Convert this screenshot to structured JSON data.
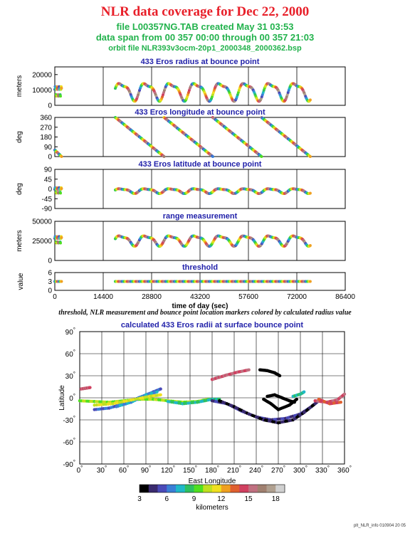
{
  "header": {
    "title": "NLR data coverage for Dec 22, 2000",
    "file_line": "file L00357NG.TAB created May 31 03:53",
    "span_line": "data span from 00 357 00:00 through 00 357 21:03",
    "orbit_line": "orbit file NLR393v3ocm-20p1_2000348_2000362.bsp"
  },
  "caption": "threshold, NLR measurement and bounce point location markers colored by calculated radius value",
  "footer": "plt_NLR_info 010904 20 05",
  "chart_data": [
    {
      "type": "scatter",
      "title": "433 Eros radius at bounce point",
      "xlabel": "",
      "ylabel": "meters",
      "xlim": [
        0,
        86400
      ],
      "ylim": [
        0,
        25000
      ],
      "yticks": [
        "20000",
        "10000",
        "0"
      ],
      "ytick_values": [
        20000,
        10000,
        0
      ],
      "xtick_values": [
        0,
        14400,
        28800,
        43200,
        57600,
        72000,
        86400
      ],
      "segments": [
        {
          "x0": 0,
          "x1": 2000,
          "y_mean": 9500,
          "amp": 3000,
          "period": 600
        },
        {
          "x0": 18000,
          "x1": 76000,
          "y_mean": 9500,
          "amp": 5200,
          "period": 7400
        }
      ]
    },
    {
      "type": "scatter",
      "title": "433 Eros longitude at bounce point",
      "xlabel": "",
      "ylabel": "deg",
      "xlim": [
        0,
        86400
      ],
      "ylim": [
        0,
        360
      ],
      "yticks": [
        "360",
        "270",
        "180",
        "90",
        "0"
      ],
      "ytick_values": [
        360,
        270,
        180,
        90,
        0
      ],
      "xtick_values": [
        0,
        14400,
        28800,
        43200,
        57600,
        72000,
        86400
      ],
      "segments": [
        {
          "x0": 0,
          "x1": 2000,
          "y_start": 60,
          "y_end": 0
        },
        {
          "x0": 18000,
          "x1": 32500,
          "y_start": 360,
          "y_end": 0
        },
        {
          "x0": 32500,
          "x1": 47000,
          "y_start": 360,
          "y_end": 0
        },
        {
          "x0": 47000,
          "x1": 61500,
          "y_start": 360,
          "y_end": 0
        },
        {
          "x0": 61500,
          "x1": 76000,
          "y_start": 360,
          "y_end": 0
        }
      ]
    },
    {
      "type": "scatter",
      "title": "433 Eros latitude at bounce point",
      "xlabel": "",
      "ylabel": "deg",
      "xlim": [
        0,
        86400
      ],
      "ylim": [
        -90,
        90
      ],
      "yticks": [
        "90",
        "45",
        "0",
        "-45",
        "-90"
      ],
      "ytick_values": [
        90,
        45,
        0,
        -45,
        -90
      ],
      "xtick_values": [
        0,
        14400,
        28800,
        43200,
        57600,
        72000,
        86400
      ],
      "segments": [
        {
          "x0": 0,
          "x1": 2000,
          "y_mean": -5,
          "amp": 12,
          "period": 600
        },
        {
          "x0": 18000,
          "x1": 76000,
          "y_mean": -8,
          "amp": 10,
          "period": 7400
        }
      ]
    },
    {
      "type": "scatter",
      "title": "range measurement",
      "xlabel": "",
      "ylabel": "meters",
      "xlim": [
        0,
        86400
      ],
      "ylim": [
        0,
        50000
      ],
      "yticks": [
        "50000",
        "25000",
        "0"
      ],
      "ytick_values": [
        50000,
        25000,
        0
      ],
      "xtick_values": [
        0,
        14400,
        28800,
        43200,
        57600,
        72000,
        86400
      ],
      "segments": [
        {
          "x0": 0,
          "x1": 2000,
          "y_mean": 27000,
          "amp": 4000,
          "period": 600
        },
        {
          "x0": 18000,
          "x1": 76000,
          "y_mean": 26000,
          "amp": 6000,
          "period": 7400
        }
      ]
    },
    {
      "type": "scatter",
      "title": "threshold",
      "xlabel": "time of day (sec)",
      "ylabel": "value",
      "xlim": [
        0,
        86400
      ],
      "ylim": [
        0,
        6
      ],
      "yticks": [
        "6",
        "3",
        "0"
      ],
      "ytick_values": [
        6,
        3,
        0
      ],
      "xticks": [
        "0",
        "14400",
        "28800",
        "43200",
        "57600",
        "72000",
        "86400"
      ],
      "xtick_values": [
        0,
        14400,
        28800,
        43200,
        57600,
        72000,
        86400
      ],
      "segments": [
        {
          "x0": 0,
          "x1": 2000,
          "y": 3
        },
        {
          "x0": 18000,
          "x1": 76000,
          "y": 3
        }
      ]
    },
    {
      "type": "scatter",
      "title": "calculated 433 Eros radii at surface bounce point",
      "xlabel": "East Longitude",
      "ylabel": "Latitude",
      "xlim": [
        0,
        360
      ],
      "ylim": [
        -90,
        90
      ],
      "xticks": [
        "0",
        "30",
        "60",
        "90",
        "120",
        "150",
        "180",
        "210",
        "240",
        "270",
        "300",
        "330",
        "360"
      ],
      "yticks": [
        "90",
        "60",
        "30",
        "0",
        "-30",
        "-60",
        "-90"
      ],
      "degree_symbol": "°",
      "colorbar": {
        "label": "kilometers",
        "ticks": [
          "3",
          "6",
          "9",
          "12",
          "15",
          "18"
        ],
        "range": [
          3,
          19
        ],
        "colors": [
          "#000000",
          "#3a2a6e",
          "#4a4ab8",
          "#3a7fd6",
          "#20b8c8",
          "#2ec060",
          "#50e020",
          "#c0e020",
          "#f0e020",
          "#f0a020",
          "#e06030",
          "#d04060",
          "#c07080",
          "#a08070",
          "#b0a090",
          "#d0d0d0"
        ]
      },
      "tracks": [
        {
          "points": [
            [
              2,
              12
            ],
            [
              8,
              13
            ],
            [
              14,
              14
            ]
          ],
          "value": 15
        },
        {
          "points": [
            [
              0,
              -4
            ],
            [
              20,
              -5
            ],
            [
              40,
              -6
            ],
            [
              60,
              -4
            ],
            [
              80,
              -2
            ],
            [
              100,
              -2
            ],
            [
              120,
              -4
            ],
            [
              140,
              -6
            ],
            [
              160,
              -5
            ],
            [
              175,
              -2
            ]
          ],
          "value": 10
        },
        {
          "points": [
            [
              20,
              -16
            ],
            [
              40,
              -14
            ],
            [
              60,
              -8
            ],
            [
              80,
              0
            ],
            [
              100,
              8
            ],
            [
              110,
              12
            ]
          ],
          "value": 6
        },
        {
          "points": [
            [
              50,
              -12
            ],
            [
              70,
              -6
            ],
            [
              90,
              4
            ],
            [
              105,
              8
            ]
          ],
          "value": 7
        },
        {
          "points": [
            [
              20,
              -10
            ],
            [
              45,
              -8
            ],
            [
              70,
              -3
            ],
            [
              95,
              2
            ],
            [
              110,
              4
            ]
          ],
          "value": 11
        },
        {
          "points": [
            [
              120,
              -5
            ],
            [
              140,
              -8
            ],
            [
              160,
              -6
            ],
            [
              180,
              -2
            ],
            [
              190,
              -2
            ]
          ],
          "value": 8
        },
        {
          "points": [
            [
              180,
              25
            ],
            [
              190,
              28
            ],
            [
              200,
              31
            ],
            [
              215,
              35
            ],
            [
              230,
              38
            ]
          ],
          "value": 15
        },
        {
          "points": [
            [
              245,
              38
            ],
            [
              255,
              37
            ],
            [
              265,
              34
            ],
            [
              272,
              30
            ]
          ],
          "value": 3
        },
        {
          "points": [
            [
              180,
              -4
            ],
            [
              200,
              -8
            ],
            [
              220,
              -18
            ],
            [
              240,
              -26
            ],
            [
              260,
              -30
            ],
            [
              280,
              -28
            ],
            [
              300,
              -22
            ],
            [
              315,
              -12
            ],
            [
              325,
              -4
            ]
          ],
          "value": 5
        },
        {
          "points": [
            [
              190,
              -4
            ],
            [
              210,
              -12
            ],
            [
              230,
              -22
            ],
            [
              250,
              -30
            ],
            [
              270,
              -34
            ],
            [
              290,
              -30
            ],
            [
              305,
              -20
            ],
            [
              320,
              -8
            ]
          ],
          "value": 4
        },
        {
          "points": [
            [
              250,
              -2
            ],
            [
              260,
              -8
            ],
            [
              270,
              -16
            ],
            [
              285,
              -10
            ],
            [
              295,
              -2
            ]
          ],
          "value": 3
        },
        {
          "points": [
            [
              255,
              2
            ],
            [
              265,
              4
            ],
            [
              275,
              0
            ],
            [
              285,
              -4
            ],
            [
              292,
              -6
            ]
          ],
          "value": 3
        },
        {
          "points": [
            [
              290,
              2
            ],
            [
              300,
              5
            ],
            [
              305,
              8
            ]
          ],
          "value": 8
        },
        {
          "points": [
            [
              320,
              -4
            ],
            [
              335,
              -6
            ],
            [
              350,
              -3
            ],
            [
              360,
              5
            ]
          ],
          "value": 15
        },
        {
          "points": [
            [
              325,
              -2
            ],
            [
              340,
              -8
            ],
            [
              355,
              -6
            ]
          ],
          "value": 14
        }
      ]
    }
  ]
}
